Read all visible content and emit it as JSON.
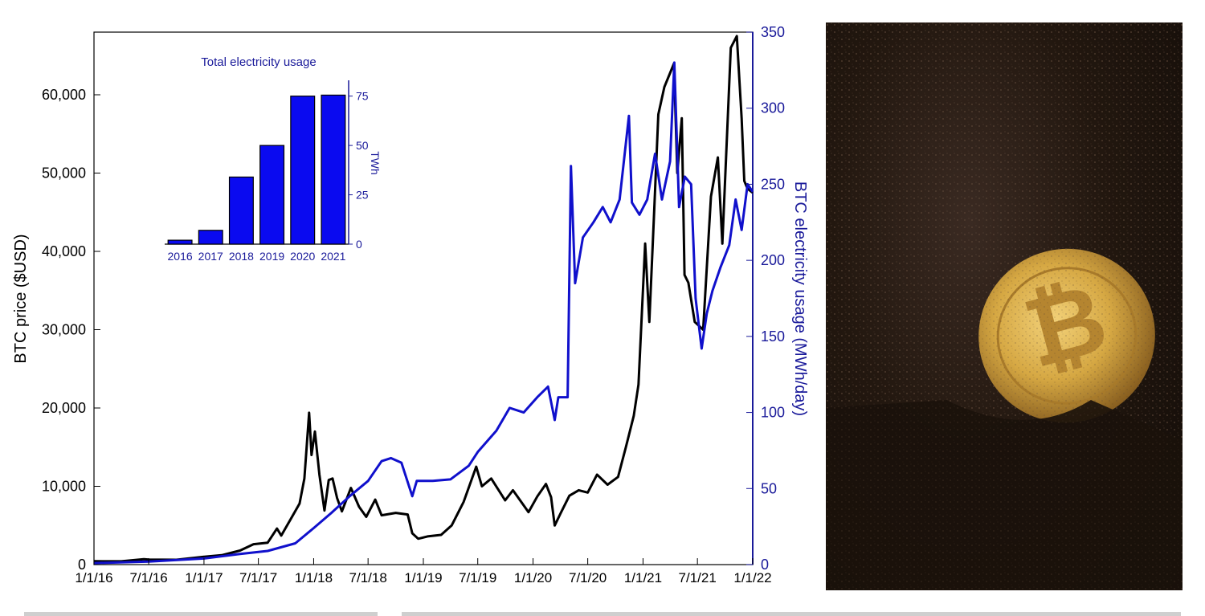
{
  "chart_data": [
    {
      "type": "line",
      "title": "",
      "xlabel": "",
      "ylabel_left": "BTC price ($USD)",
      "ylabel_right": "BTC electricity usage (MWh/day)",
      "x_ticks": [
        "1/1/16",
        "7/1/16",
        "1/1/17",
        "7/1/17",
        "1/1/18",
        "7/1/18",
        "1/1/19",
        "7/1/19",
        "1/1/20",
        "7/1/20",
        "1/1/21",
        "7/1/21",
        "1/1/22"
      ],
      "y_left_ticks": [
        "0",
        "10,000",
        "20,000",
        "30,000",
        "40,000",
        "50,000",
        "60,000"
      ],
      "y_right_ticks": [
        "0",
        "50",
        "100",
        "150",
        "200",
        "250",
        "300",
        "350"
      ],
      "ylim_left": [
        0,
        68000
      ],
      "ylim_right": [
        0,
        350
      ],
      "grid": false,
      "series": [
        {
          "axis": "left",
          "color": "#000000",
          "points": [
            [
              "2016-01-01",
              430
            ],
            [
              "2016-04-01",
              420
            ],
            [
              "2016-06-15",
              700
            ],
            [
              "2016-07-01",
              650
            ],
            [
              "2016-10-01",
              620
            ],
            [
              "2017-01-01",
              990
            ],
            [
              "2017-03-01",
              1200
            ],
            [
              "2017-05-01",
              1800
            ],
            [
              "2017-06-15",
              2600
            ],
            [
              "2017-08-01",
              2800
            ],
            [
              "2017-09-01",
              4600
            ],
            [
              "2017-09-15",
              3700
            ],
            [
              "2017-10-15",
              5700
            ],
            [
              "2017-11-15",
              7800
            ],
            [
              "2017-12-01",
              11000
            ],
            [
              "2017-12-17",
              19400
            ],
            [
              "2017-12-25",
              14000
            ],
            [
              "2018-01-05",
              17000
            ],
            [
              "2018-01-20",
              11500
            ],
            [
              "2018-02-06",
              6900
            ],
            [
              "2018-02-20",
              10800
            ],
            [
              "2018-03-05",
              11000
            ],
            [
              "2018-03-20",
              8500
            ],
            [
              "2018-04-05",
              6800
            ],
            [
              "2018-05-05",
              9800
            ],
            [
              "2018-06-01",
              7400
            ],
            [
              "2018-06-25",
              6100
            ],
            [
              "2018-07-25",
              8300
            ],
            [
              "2018-08-15",
              6300
            ],
            [
              "2018-10-01",
              6600
            ],
            [
              "2018-11-10",
              6400
            ],
            [
              "2018-11-25",
              4000
            ],
            [
              "2018-12-15",
              3300
            ],
            [
              "2019-01-15",
              3600
            ],
            [
              "2019-03-01",
              3800
            ],
            [
              "2019-04-05",
              5000
            ],
            [
              "2019-05-15",
              8000
            ],
            [
              "2019-06-26",
              12500
            ],
            [
              "2019-07-15",
              10000
            ],
            [
              "2019-08-15",
              11000
            ],
            [
              "2019-09-30",
              8200
            ],
            [
              "2019-10-26",
              9500
            ],
            [
              "2019-12-17",
              6700
            ],
            [
              "2020-01-15",
              8700
            ],
            [
              "2020-02-13",
              10300
            ],
            [
              "2020-03-01",
              8600
            ],
            [
              "2020-03-13",
              5000
            ],
            [
              "2020-04-01",
              6500
            ],
            [
              "2020-05-01",
              8800
            ],
            [
              "2020-06-01",
              9500
            ],
            [
              "2020-07-01",
              9200
            ],
            [
              "2020-08-01",
              11500
            ],
            [
              "2020-09-05",
              10200
            ],
            [
              "2020-10-10",
              11200
            ],
            [
              "2020-11-05",
              15000
            ],
            [
              "2020-12-01",
              19000
            ],
            [
              "2020-12-17",
              23000
            ],
            [
              "2021-01-08",
              41000
            ],
            [
              "2021-01-22",
              31000
            ],
            [
              "2021-02-08",
              46000
            ],
            [
              "2021-02-21",
              57500
            ],
            [
              "2021-03-13",
              61000
            ],
            [
              "2021-04-14",
              64000
            ],
            [
              "2021-04-25",
              50000
            ],
            [
              "2021-05-10",
              57000
            ],
            [
              "2021-05-19",
              37000
            ],
            [
              "2021-06-01",
              36000
            ],
            [
              "2021-06-22",
              31000
            ],
            [
              "2021-07-20",
              30000
            ],
            [
              "2021-08-15",
              47000
            ],
            [
              "2021-09-07",
              52000
            ],
            [
              "2021-09-22",
              41000
            ],
            [
              "2021-10-20",
              66000
            ],
            [
              "2021-11-09",
              67500
            ],
            [
              "2021-11-25",
              57000
            ],
            [
              "2021-12-04",
              49000
            ],
            [
              "2021-12-15",
              48000
            ],
            [
              "2022-01-01",
              47500
            ]
          ]
        },
        {
          "axis": "right",
          "color": "#1010cc",
          "points": [
            [
              "2016-01-01",
              1
            ],
            [
              "2016-07-01",
              2
            ],
            [
              "2017-01-01",
              4
            ],
            [
              "2017-05-01",
              7
            ],
            [
              "2017-08-01",
              9
            ],
            [
              "2017-11-01",
              14
            ],
            [
              "2018-01-01",
              24
            ],
            [
              "2018-03-01",
              34
            ],
            [
              "2018-05-01",
              45
            ],
            [
              "2018-07-01",
              55
            ],
            [
              "2018-08-15",
              68
            ],
            [
              "2018-09-15",
              70
            ],
            [
              "2018-10-20",
              67
            ],
            [
              "2018-11-25",
              45
            ],
            [
              "2018-12-10",
              55
            ],
            [
              "2019-02-01",
              55
            ],
            [
              "2019-04-01",
              56
            ],
            [
              "2019-06-01",
              65
            ],
            [
              "2019-07-01",
              74
            ],
            [
              "2019-09-01",
              88
            ],
            [
              "2019-10-15",
              103
            ],
            [
              "2019-12-01",
              100
            ],
            [
              "2020-01-15",
              110
            ],
            [
              "2020-02-20",
              117
            ],
            [
              "2020-03-13",
              95
            ],
            [
              "2020-03-25",
              110
            ],
            [
              "2020-04-25",
              110
            ],
            [
              "2020-05-06",
              262
            ],
            [
              "2020-05-20",
              185
            ],
            [
              "2020-06-15",
              215
            ],
            [
              "2020-07-20",
              225
            ],
            [
              "2020-08-20",
              235
            ],
            [
              "2020-09-15",
              225
            ],
            [
              "2020-10-15",
              240
            ],
            [
              "2020-11-15",
              295
            ],
            [
              "2020-11-25",
              238
            ],
            [
              "2020-12-20",
              230
            ],
            [
              "2021-01-15",
              240
            ],
            [
              "2021-02-10",
              270
            ],
            [
              "2021-03-05",
              240
            ],
            [
              "2021-04-01",
              265
            ],
            [
              "2021-04-15",
              330
            ],
            [
              "2021-05-01",
              235
            ],
            [
              "2021-05-20",
              255
            ],
            [
              "2021-06-10",
              250
            ],
            [
              "2021-06-25",
              175
            ],
            [
              "2021-07-15",
              142
            ],
            [
              "2021-08-01",
              165
            ],
            [
              "2021-08-20",
              180
            ],
            [
              "2021-09-15",
              195
            ],
            [
              "2021-10-15",
              210
            ],
            [
              "2021-11-05",
              240
            ],
            [
              "2021-11-25",
              220
            ],
            [
              "2021-12-15",
              250
            ],
            [
              "2022-01-01",
              245
            ]
          ]
        }
      ]
    },
    {
      "type": "bar",
      "title": "Total electricity usage",
      "ylabel": "TWh",
      "categories": [
        "2016",
        "2017",
        "2018",
        "2019",
        "2020",
        "2021"
      ],
      "values": [
        2,
        7,
        34,
        50,
        75,
        75.5
      ],
      "ylim": [
        0,
        83
      ],
      "y_ticks": [
        "0",
        "25",
        "50",
        "75"
      ],
      "color": "#0a0af0"
    }
  ],
  "colors": {
    "price_line": "#000000",
    "usage_line": "#1010cc",
    "right_axis": "#1a1a9a",
    "bars": "#0a0af0"
  },
  "photo": {
    "icon": "bitcoin-coin-in-soil-photo",
    "coin_color": "#d6a843",
    "soil_color": "#1e140d"
  }
}
